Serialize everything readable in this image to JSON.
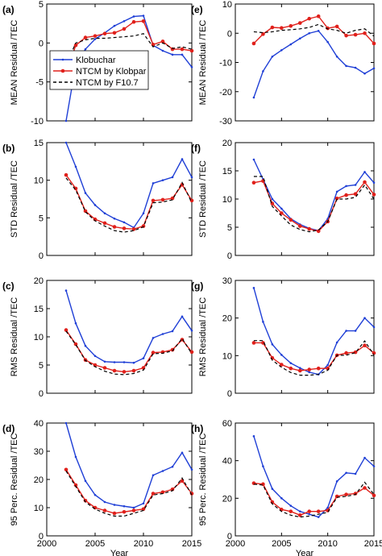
{
  "series_styles": {
    "Klobuchar": {
      "color": "#1f3fd6",
      "dash": "",
      "marker": "dot-small"
    },
    "NTCM by Klobpar": {
      "color": "#e0201b",
      "dash": "",
      "marker": "dot-large"
    },
    "NTCM by F10.7": {
      "color": "#000000",
      "dash": "4,3",
      "marker": "none"
    }
  },
  "legend": {
    "entries": [
      "Klobuchar",
      "NTCM by Klobpar",
      "NTCM by F10.7"
    ],
    "placement": "inside panel (a), middle"
  },
  "chart_data": [
    {
      "type": "line",
      "panel": "(a)",
      "ylabel": "MEAN Residual /TEC",
      "xlabel": "",
      "xlim": [
        2000,
        2015
      ],
      "ylim": [
        -10,
        5
      ],
      "yticks": [
        -10,
        -5,
        0,
        5
      ],
      "xticks": [
        2000,
        2005,
        2010,
        2015
      ],
      "show_xticklabels": false,
      "x": [
        2002,
        2003,
        2004,
        2005,
        2006,
        2007,
        2008,
        2009,
        2010,
        2011,
        2012,
        2013,
        2014,
        2015
      ],
      "series": [
        {
          "name": "Klobuchar",
          "values": [
            -10.0,
            -2.8,
            -0.8,
            0.5,
            1.3,
            2.2,
            2.8,
            3.4,
            3.5,
            -0.3,
            -1.0,
            -1.5,
            -1.5,
            -3.1
          ]
        },
        {
          "name": "NTCM by Klobpar",
          "values": [
            -3.9,
            -0.3,
            0.7,
            0.9,
            1.2,
            1.3,
            1.8,
            2.7,
            2.8,
            -0.2,
            0.2,
            -0.8,
            -0.8,
            -1.0
          ]
        },
        {
          "name": "NTCM by F10.7",
          "values": [
            -2.8,
            0.0,
            0.4,
            0.6,
            0.6,
            0.7,
            0.8,
            0.9,
            1.2,
            -0.5,
            0.0,
            -0.7,
            -0.5,
            -0.8
          ]
        }
      ]
    },
    {
      "type": "line",
      "panel": "(e)",
      "ylabel": "MEAN Residual /TEC",
      "xlabel": "",
      "xlim": [
        2000,
        2015
      ],
      "ylim": [
        -30,
        10
      ],
      "yticks": [
        -30,
        -20,
        -10,
        0,
        10
      ],
      "xticks": [
        2000,
        2005,
        2010,
        2015
      ],
      "show_xticklabels": false,
      "x": [
        2002,
        2003,
        2004,
        2005,
        2006,
        2007,
        2008,
        2009,
        2010,
        2011,
        2012,
        2013,
        2014,
        2015
      ],
      "series": [
        {
          "name": "Klobuchar",
          "values": [
            -22.0,
            -13.0,
            -8.0,
            -5.8,
            -3.8,
            -1.8,
            0.0,
            0.8,
            -3.0,
            -8.0,
            -11.2,
            -11.8,
            -13.8,
            -12.0
          ]
        },
        {
          "name": "NTCM by Klobpar",
          "values": [
            -3.5,
            -0.3,
            2.0,
            1.8,
            2.5,
            3.5,
            5.0,
            5.8,
            1.7,
            2.3,
            -0.8,
            -0.5,
            0.0,
            -3.5
          ]
        },
        {
          "name": "NTCM by F10.7",
          "values": [
            0.5,
            0.2,
            0.5,
            1.0,
            1.2,
            1.5,
            2.0,
            3.0,
            1.5,
            1.0,
            0.0,
            1.0,
            1.5,
            -1.0
          ]
        }
      ]
    },
    {
      "type": "line",
      "panel": "(b)",
      "ylabel": "STD Residual /TEC",
      "xlabel": "",
      "xlim": [
        2000,
        2015
      ],
      "ylim": [
        0,
        15
      ],
      "yticks": [
        0,
        5,
        10,
        15
      ],
      "xticks": [
        2000,
        2005,
        2010,
        2015
      ],
      "show_xticklabels": false,
      "x": [
        2002,
        2003,
        2004,
        2005,
        2006,
        2007,
        2008,
        2009,
        2010,
        2011,
        2012,
        2013,
        2014,
        2015
      ],
      "series": [
        {
          "name": "Klobuchar",
          "values": [
            15.0,
            11.8,
            8.3,
            6.7,
            5.6,
            4.9,
            4.4,
            3.7,
            5.6,
            9.6,
            10.0,
            10.4,
            12.8,
            10.4
          ]
        },
        {
          "name": "NTCM by Klobpar",
          "values": [
            10.7,
            8.9,
            5.9,
            4.8,
            4.3,
            3.8,
            3.6,
            3.5,
            3.9,
            7.3,
            7.4,
            7.6,
            9.4,
            7.3
          ]
        },
        {
          "name": "NTCM by F10.7",
          "values": [
            10.3,
            8.7,
            5.8,
            4.6,
            3.9,
            3.3,
            3.1,
            3.3,
            3.8,
            7.0,
            7.1,
            7.4,
            9.7,
            7.0
          ]
        }
      ]
    },
    {
      "type": "line",
      "panel": "(f)",
      "ylabel": "STD Residual /TEC",
      "xlabel": "",
      "xlim": [
        2000,
        2015
      ],
      "ylim": [
        0,
        20
      ],
      "yticks": [
        0,
        5,
        10,
        15,
        20
      ],
      "xticks": [
        2000,
        2005,
        2010,
        2015
      ],
      "show_xticklabels": false,
      "x": [
        2002,
        2003,
        2004,
        2005,
        2006,
        2007,
        2008,
        2009,
        2010,
        2011,
        2012,
        2013,
        2014,
        2015
      ],
      "series": [
        {
          "name": "Klobuchar",
          "values": [
            17.0,
            13.5,
            10.0,
            8.3,
            6.5,
            5.5,
            4.8,
            4.4,
            6.5,
            11.3,
            12.3,
            12.5,
            14.8,
            12.9
          ]
        },
        {
          "name": "NTCM by Klobpar",
          "values": [
            12.9,
            13.2,
            9.2,
            7.5,
            6.3,
            5.2,
            4.7,
            4.3,
            6.0,
            10.1,
            10.7,
            10.9,
            13.0,
            10.8
          ]
        },
        {
          "name": "NTCM by F10.7",
          "values": [
            14.0,
            14.0,
            8.7,
            7.0,
            5.4,
            4.6,
            4.2,
            4.5,
            6.0,
            10.0,
            10.0,
            10.3,
            12.5,
            10.0
          ]
        }
      ]
    },
    {
      "type": "line",
      "panel": "(c)",
      "ylabel": "RMS Residual /TEC",
      "xlabel": "",
      "xlim": [
        2000,
        2015
      ],
      "ylim": [
        0,
        20
      ],
      "yticks": [
        0,
        5,
        10,
        15,
        20
      ],
      "xticks": [
        2000,
        2005,
        2010,
        2015
      ],
      "show_xticklabels": false,
      "x": [
        2002,
        2003,
        2004,
        2005,
        2006,
        2007,
        2008,
        2009,
        2010,
        2011,
        2012,
        2013,
        2014,
        2015
      ],
      "series": [
        {
          "name": "Klobuchar",
          "values": [
            18.2,
            12.4,
            8.4,
            6.6,
            5.6,
            5.5,
            5.5,
            5.4,
            6.2,
            9.8,
            10.5,
            11.0,
            13.6,
            11.1
          ]
        },
        {
          "name": "NTCM by Klobpar",
          "values": [
            11.2,
            8.7,
            5.9,
            5.0,
            4.5,
            4.0,
            3.8,
            4.0,
            4.5,
            7.2,
            7.3,
            7.7,
            9.5,
            7.3
          ]
        },
        {
          "name": "NTCM by F10.7",
          "values": [
            11.0,
            8.6,
            5.8,
            4.7,
            3.9,
            3.4,
            3.3,
            3.5,
            4.1,
            7.0,
            7.1,
            7.5,
            9.7,
            7.0
          ]
        }
      ]
    },
    {
      "type": "line",
      "panel": "(g)",
      "ylabel": "RMS Residual /TEC",
      "xlabel": "",
      "xlim": [
        2000,
        2015
      ],
      "ylim": [
        0,
        30
      ],
      "yticks": [
        0,
        10,
        20,
        30
      ],
      "xticks": [
        2000,
        2005,
        2010,
        2015
      ],
      "show_xticklabels": false,
      "x": [
        2002,
        2003,
        2004,
        2005,
        2006,
        2007,
        2008,
        2009,
        2010,
        2011,
        2012,
        2013,
        2014,
        2015
      ],
      "series": [
        {
          "name": "Klobuchar",
          "values": [
            28.0,
            19.0,
            13.0,
            10.2,
            8.0,
            6.7,
            5.6,
            5.0,
            7.5,
            13.5,
            16.6,
            16.6,
            20.0,
            17.6
          ]
        },
        {
          "name": "NTCM by Klobpar",
          "values": [
            13.4,
            13.4,
            9.4,
            7.6,
            6.6,
            6.0,
            6.3,
            6.6,
            6.6,
            10.1,
            10.7,
            10.9,
            12.7,
            10.7
          ]
        },
        {
          "name": "NTCM by F10.7",
          "values": [
            14.0,
            14.0,
            8.8,
            6.9,
            5.5,
            4.8,
            4.8,
            5.0,
            6.1,
            10.1,
            10.1,
            10.8,
            13.9,
            10.2
          ]
        }
      ]
    },
    {
      "type": "line",
      "panel": "(d)",
      "ylabel": "95 Perc. Residual /TEC",
      "xlabel": "Year",
      "xlim": [
        2000,
        2015
      ],
      "ylim": [
        0,
        40
      ],
      "yticks": [
        0,
        10,
        20,
        30,
        40
      ],
      "xticks": [
        2000,
        2005,
        2010,
        2015
      ],
      "show_xticklabels": true,
      "x": [
        2002,
        2003,
        2004,
        2005,
        2006,
        2007,
        2008,
        2009,
        2010,
        2011,
        2012,
        2013,
        2014,
        2015
      ],
      "series": [
        {
          "name": "Klobuchar",
          "values": [
            40.0,
            28.0,
            19.5,
            14.5,
            12.0,
            11.0,
            10.5,
            10.0,
            11.5,
            21.5,
            23.0,
            24.5,
            29.5,
            23.5
          ]
        },
        {
          "name": "NTCM by Klobpar",
          "values": [
            23.5,
            18.0,
            12.5,
            10.0,
            9.0,
            8.0,
            8.5,
            9.0,
            9.5,
            15.0,
            15.5,
            16.5,
            19.5,
            15.0
          ]
        },
        {
          "name": "NTCM by F10.7",
          "values": [
            23.0,
            17.5,
            12.0,
            9.5,
            8.0,
            7.0,
            7.0,
            8.0,
            9.0,
            14.5,
            15.0,
            16.0,
            20.5,
            14.5
          ]
        }
      ]
    },
    {
      "type": "line",
      "panel": "(h)",
      "ylabel": "95 Perc. Residual /TEC",
      "xlabel": "Year",
      "xlim": [
        2000,
        2015
      ],
      "ylim": [
        0,
        60
      ],
      "yticks": [
        0,
        20,
        40,
        60
      ],
      "xticks": [
        2000,
        2005,
        2010,
        2015
      ],
      "show_xticklabels": true,
      "x": [
        2002,
        2003,
        2004,
        2005,
        2006,
        2007,
        2008,
        2009,
        2010,
        2011,
        2012,
        2013,
        2014,
        2015
      ],
      "series": [
        {
          "name": "Klobuchar",
          "values": [
            53.0,
            37.0,
            25.0,
            20.0,
            16.0,
            13.0,
            11.5,
            10.0,
            15.0,
            29.0,
            33.5,
            33.0,
            41.5,
            37.0
          ]
        },
        {
          "name": "NTCM by Klobpar",
          "values": [
            28.0,
            27.5,
            18.0,
            14.0,
            13.0,
            11.0,
            13.0,
            13.0,
            13.5,
            21.0,
            22.0,
            22.5,
            25.5,
            21.5
          ]
        },
        {
          "name": "NTCM by F10.7",
          "values": [
            27.5,
            27.0,
            17.0,
            13.0,
            11.0,
            10.0,
            10.5,
            11.5,
            12.5,
            20.5,
            21.0,
            22.0,
            28.5,
            22.0
          ]
        }
      ]
    }
  ]
}
